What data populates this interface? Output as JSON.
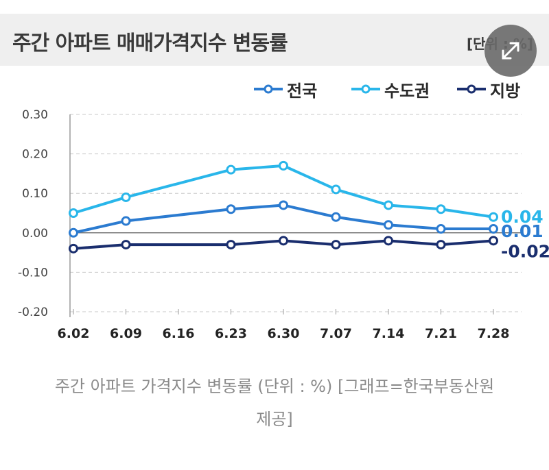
{
  "header": {
    "title": "주간 아파트 매매가격지수 변동률",
    "unit": "[단위 : %]"
  },
  "zoom_button": {
    "icon": "expand-icon"
  },
  "caption": {
    "line1": "주간 아파트 가격지수 변동률 (단위 : %) [그래프=한국부동산원",
    "line2": "제공]"
  },
  "colors": {
    "national": "#2b7bd0",
    "capital": "#29b6ea",
    "regional": "#1a2e6e",
    "grid": "#c8c8c8",
    "axis_text": "#444444"
  },
  "chart_data": {
    "type": "line",
    "categories": [
      "6.02",
      "6.09",
      "6.16",
      "6.23",
      "6.30",
      "7.07",
      "7.14",
      "7.21",
      "7.28"
    ],
    "ylim": [
      -0.2,
      0.3
    ],
    "yticks": [
      "0.30",
      "0.20",
      "0.10",
      "0.00",
      "-0.10",
      "-0.20"
    ],
    "grid": true,
    "legend_position": "top-right",
    "series": [
      {
        "name": "전국",
        "color": "#2b7bd0",
        "values": [
          0.0,
          0.03,
          null,
          0.06,
          0.07,
          0.04,
          0.02,
          0.01,
          0.01
        ],
        "end_label": "0.01"
      },
      {
        "name": "수도권",
        "color": "#29b6ea",
        "values": [
          0.05,
          0.09,
          null,
          0.16,
          0.17,
          0.11,
          0.07,
          0.06,
          0.04
        ],
        "end_label": "0.04"
      },
      {
        "name": "지방",
        "color": "#1a2e6e",
        "values": [
          -0.04,
          -0.03,
          null,
          -0.03,
          -0.02,
          -0.03,
          -0.02,
          -0.03,
          -0.02
        ],
        "end_label": "-0.02"
      }
    ]
  }
}
